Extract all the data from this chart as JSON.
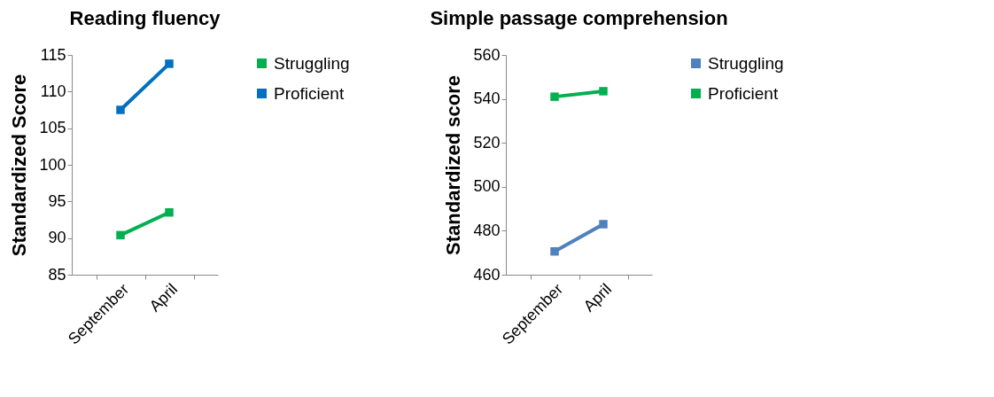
{
  "chart_data": [
    {
      "type": "line",
      "title": "Reading fluency",
      "ylabel": "Standardized Score",
      "categories": [
        "September",
        "April"
      ],
      "ylim": [
        85,
        115
      ],
      "yticks": [
        85,
        90,
        95,
        100,
        105,
        110,
        115
      ],
      "grid": false,
      "legend": "right",
      "marker": "square",
      "line_style": "solid",
      "series": [
        {
          "name": "Struggling",
          "color": "#00b050",
          "values": [
            90.4,
            93.5
          ]
        },
        {
          "name": "Proficient",
          "color": "#0070c0",
          "values": [
            107.5,
            113.8
          ]
        }
      ]
    },
    {
      "type": "line",
      "title": "Simple passage comprehension",
      "ylabel": "Standardized score",
      "categories": [
        "September",
        "April"
      ],
      "ylim": [
        460,
        560
      ],
      "yticks": [
        460,
        480,
        500,
        520,
        540,
        560
      ],
      "grid": false,
      "legend": "right",
      "marker": "square",
      "line_style": "solid",
      "series": [
        {
          "name": "Struggling",
          "color": "#4f81bd",
          "values": [
            470.6,
            483.0
          ]
        },
        {
          "name": "Proficient",
          "color": "#00b050",
          "values": [
            541.0,
            543.5
          ]
        }
      ]
    }
  ]
}
